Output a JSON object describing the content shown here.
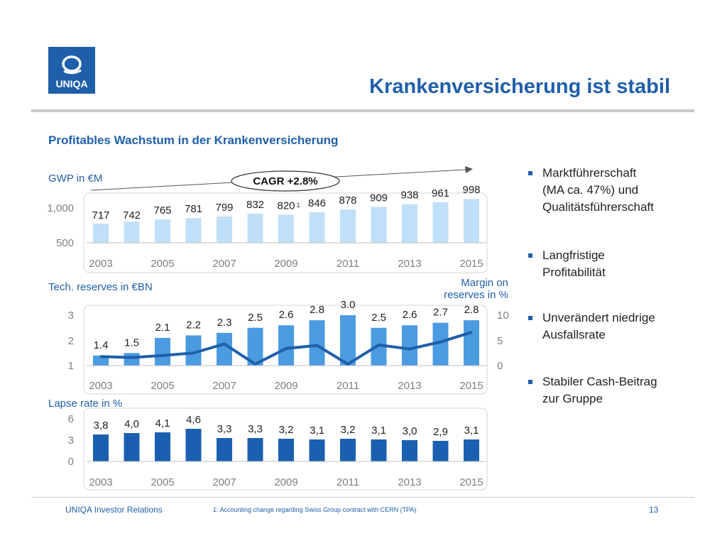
{
  "header": {
    "logo_text": "UNIQA",
    "title": "Krankenversicherung ist stabil",
    "subtitle": "Profitables Wachstum in der Krankenversicherung"
  },
  "colors": {
    "brand_blue": "#1f5faa",
    "light_blue": "#bfe0f8",
    "mid_blue": "#4b9be0",
    "dark_blue": "#1b60b0",
    "line_blue": "#1f5faa",
    "axis_gray": "#7f7f7f"
  },
  "labels": {
    "gwp": "GWP in €M",
    "cagr": "CAGR +2.8%",
    "tech_reserves": "Tech. reserves in €BN",
    "margin": [
      "Margin on",
      "reserves in %"
    ],
    "lapse": "Lapse rate in %",
    "footnote_marker": "1"
  },
  "bullets": [
    [
      "Marktführerschaft",
      "(MA ca. 47%) und",
      "Qualitätsführerschaft"
    ],
    [
      "Langfristige",
      "Profitabilität"
    ],
    [
      "Unverändert niedrige",
      "Ausfallsrate"
    ],
    [
      "Stabiler Cash-Beitrag",
      "zur Gruppe"
    ]
  ],
  "footer": {
    "left": "UNIQA Investor Relations",
    "footnote": "1: Accounting change regarding Swiss Group contract with CERN (TPA)",
    "page": "13"
  },
  "chart_data": [
    {
      "type": "bar",
      "categories": [
        "2003",
        "2004",
        "2005",
        "2006",
        "2007",
        "2008",
        "2009",
        "2010",
        "2011",
        "2012",
        "2013",
        "2014",
        "2015"
      ],
      "x_tick_labels": [
        "2003",
        "2005",
        "2007",
        "2009",
        "2011",
        "2013",
        "2015"
      ],
      "values": [
        717,
        742,
        765,
        781,
        799,
        832,
        820,
        846,
        878,
        909,
        938,
        961,
        998
      ],
      "data_labels": [
        "717",
        "742",
        "765",
        "781",
        "799",
        "832",
        "820",
        "846",
        "878",
        "909",
        "938",
        "961",
        "998"
      ],
      "ylabel": "GWP in €M",
      "y_ticks": [
        "1,000",
        "500"
      ],
      "ylim": [
        500,
        1000
      ],
      "annotation": "CAGR +2.8%",
      "color": "#bfe0f8"
    },
    {
      "type": "bar",
      "categories": [
        "2003",
        "2004",
        "2005",
        "2006",
        "2007",
        "2008",
        "2009",
        "2010",
        "2011",
        "2012",
        "2013",
        "2014",
        "2015"
      ],
      "x_tick_labels": [
        "2003",
        "2005",
        "2007",
        "2009",
        "2011",
        "2013",
        "2015"
      ],
      "values": [
        1.4,
        1.5,
        2.1,
        2.2,
        2.3,
        2.5,
        2.6,
        2.8,
        3.0,
        2.5,
        2.6,
        2.7,
        2.8
      ],
      "data_labels": [
        "1.4",
        "1.5",
        "2.1",
        "2.2",
        "2.3",
        "2.5",
        "2.6",
        "2.8",
        "3.0",
        "2.5",
        "2.6",
        "2.7",
        "2.8"
      ],
      "ylabel": "Tech. reserves in €BN",
      "y_ticks": [
        "3",
        "2",
        "1"
      ],
      "ylim": [
        1,
        3
      ],
      "secondary_series": {
        "type": "line",
        "name": "Margin on reserves in %",
        "values": [
          1.8,
          1.6,
          2.0,
          2.5,
          4.3,
          0.3,
          3.4,
          4.0,
          0.3,
          4.1,
          3.3,
          4.7,
          6.6
        ],
        "y_ticks": [
          "10",
          "5",
          "0"
        ],
        "ylim": [
          0,
          10
        ]
      },
      "color": "#4b9be0"
    },
    {
      "type": "bar",
      "categories": [
        "2003",
        "2004",
        "2005",
        "2006",
        "2007",
        "2008",
        "2009",
        "2010",
        "2011",
        "2012",
        "2013",
        "2014",
        "2015"
      ],
      "x_tick_labels": [
        "2003",
        "2005",
        "2007",
        "2009",
        "2011",
        "2013",
        "2015"
      ],
      "values": [
        3.8,
        4.0,
        4.1,
        4.6,
        3.3,
        3.3,
        3.2,
        3.1,
        3.2,
        3.1,
        3.0,
        2.9,
        3.1
      ],
      "data_labels": [
        "3,8",
        "4,0",
        "4,1",
        "4,6",
        "3,3",
        "3,3",
        "3,2",
        "3,1",
        "3,2",
        "3,1",
        "3,0",
        "2,9",
        "3,1"
      ],
      "ylabel": "Lapse rate in %",
      "y_ticks": [
        "6",
        "3",
        "0"
      ],
      "ylim": [
        0,
        6
      ],
      "color": "#1b60b0"
    }
  ]
}
